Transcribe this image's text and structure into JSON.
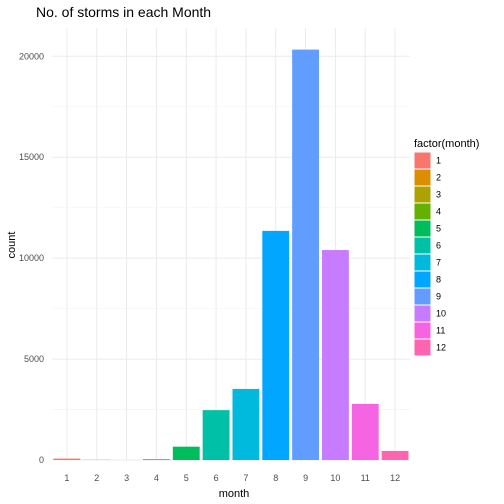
{
  "chart_data": {
    "type": "bar",
    "title": "No. of storms in each Month",
    "xlabel": "month",
    "ylabel": "count",
    "categories": [
      "1",
      "2",
      "3",
      "4",
      "5",
      "6",
      "7",
      "8",
      "9",
      "10",
      "11",
      "12"
    ],
    "values": [
      70,
      10,
      0,
      40,
      660,
      2470,
      3520,
      11350,
      20330,
      10400,
      2780,
      450
    ],
    "colors": [
      "#F8766D",
      "#DB8E00",
      "#AEA200",
      "#64B200",
      "#00BD5C",
      "#00C1A7",
      "#00BADE",
      "#00A6FF",
      "#619CFF",
      "#C77CFF",
      "#F564E3",
      "#FF64B0"
    ],
    "y_ticks": [
      0,
      5000,
      10000,
      15000,
      20000
    ],
    "y_tick_labels": [
      "0",
      "5000",
      "10000",
      "15000",
      "20000"
    ],
    "ylim": [
      0,
      21400
    ],
    "grid": true,
    "legend": {
      "title": "factor(month)",
      "position": "right",
      "entries": [
        "1",
        "2",
        "3",
        "4",
        "5",
        "6",
        "7",
        "8",
        "9",
        "10",
        "11",
        "12"
      ]
    }
  }
}
